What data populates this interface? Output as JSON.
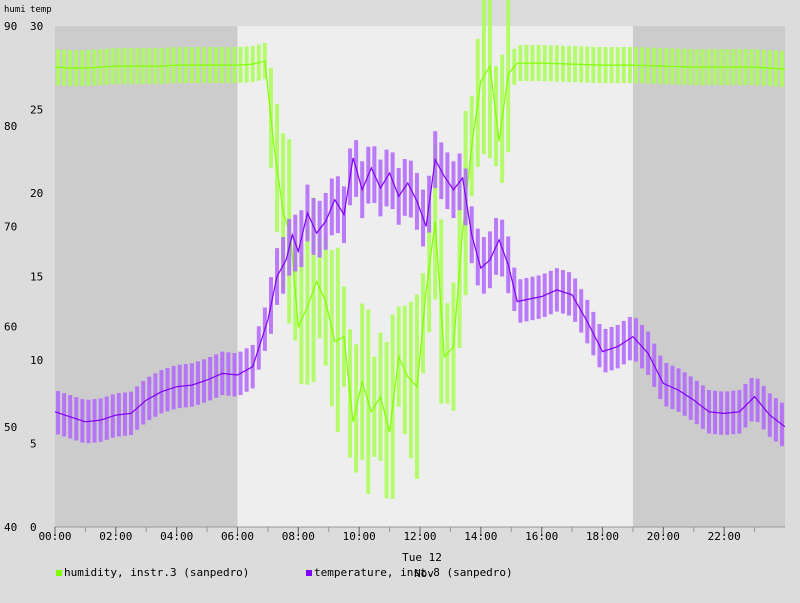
{
  "chart_data": {
    "type": "line",
    "left_axis_label": "humi",
    "right_axis_label": "temp",
    "left_ylim": [
      40,
      90
    ],
    "left_ticks": [
      "40",
      "50",
      "60",
      "70",
      "80",
      "90"
    ],
    "right_ylim": [
      0,
      30
    ],
    "right_ticks": [
      "0",
      "5",
      "10",
      "15",
      "20",
      "25",
      "30"
    ],
    "xlim_hours": [
      0,
      24
    ],
    "x_ticks": [
      "00:00",
      "02:00",
      "04:00",
      "06:00",
      "08:00",
      "10:00",
      "12:00",
      "14:00",
      "16:00",
      "18:00",
      "20:00",
      "22:00"
    ],
    "x_caption": "Tue 12",
    "x_caption_overlap": "Nov",
    "night_shading": [
      [
        0,
        6
      ],
      [
        19,
        24
      ]
    ],
    "grid": true,
    "legend_position": "bottom",
    "series": [
      {
        "name": "humidity, instr.3 (sanpedro)",
        "axis": "left",
        "color": "#80ff00",
        "band_color": "#aaff55",
        "points": [
          [
            0.0,
            85.9
          ],
          [
            0.5,
            85.8
          ],
          [
            1.0,
            85.8
          ],
          [
            1.5,
            85.9
          ],
          [
            2.0,
            86.0
          ],
          [
            2.5,
            86.0
          ],
          [
            3.0,
            86.0
          ],
          [
            3.5,
            86.0
          ],
          [
            4.0,
            86.1
          ],
          [
            4.5,
            86.1
          ],
          [
            5.0,
            86.1
          ],
          [
            5.5,
            86.1
          ],
          [
            6.0,
            86.1
          ],
          [
            6.5,
            86.2
          ],
          [
            6.9,
            86.5
          ],
          [
            7.2,
            78.0
          ],
          [
            7.5,
            71.5
          ],
          [
            7.75,
            69.0
          ],
          [
            8.0,
            60.0
          ],
          [
            8.3,
            62.0
          ],
          [
            8.6,
            64.5
          ],
          [
            8.9,
            62.5
          ],
          [
            9.2,
            58.5
          ],
          [
            9.5,
            59.0
          ],
          [
            9.8,
            50.5
          ],
          [
            10.1,
            54.5
          ],
          [
            10.4,
            51.5
          ],
          [
            10.7,
            53.0
          ],
          [
            11.0,
            49.5
          ],
          [
            11.3,
            57.0
          ],
          [
            11.6,
            55.0
          ],
          [
            11.9,
            54.0
          ],
          [
            12.2,
            63.5
          ],
          [
            12.5,
            70.5
          ],
          [
            12.8,
            57.0
          ],
          [
            13.1,
            58.0
          ],
          [
            13.4,
            69.5
          ],
          [
            13.7,
            78.0
          ],
          [
            14.0,
            84.5
          ],
          [
            14.3,
            86.0
          ],
          [
            14.6,
            78.5
          ],
          [
            14.9,
            85.2
          ],
          [
            15.2,
            86.3
          ],
          [
            16.0,
            86.3
          ],
          [
            17.0,
            86.2
          ],
          [
            18.0,
            86.1
          ],
          [
            19.0,
            86.1
          ],
          [
            20.0,
            86.0
          ],
          [
            21.0,
            85.9
          ],
          [
            22.0,
            85.9
          ],
          [
            23.0,
            85.9
          ],
          [
            24.0,
            85.7
          ]
        ]
      },
      {
        "name": "temperature, inst.8 (sanpedro)",
        "axis": "right",
        "color": "#8000ff",
        "band_color": "#b266ff",
        "points": [
          [
            0.0,
            6.9
          ],
          [
            0.5,
            6.6
          ],
          [
            1.0,
            6.3
          ],
          [
            1.5,
            6.4
          ],
          [
            2.0,
            6.7
          ],
          [
            2.5,
            6.8
          ],
          [
            3.0,
            7.6
          ],
          [
            3.5,
            8.1
          ],
          [
            4.0,
            8.4
          ],
          [
            4.5,
            8.5
          ],
          [
            5.0,
            8.8
          ],
          [
            5.5,
            9.2
          ],
          [
            6.0,
            9.1
          ],
          [
            6.5,
            9.6
          ],
          [
            7.0,
            12.4
          ],
          [
            7.3,
            15.0
          ],
          [
            7.6,
            16.0
          ],
          [
            7.8,
            17.5
          ],
          [
            8.0,
            16.5
          ],
          [
            8.3,
            18.8
          ],
          [
            8.6,
            17.6
          ],
          [
            8.9,
            18.3
          ],
          [
            9.2,
            19.6
          ],
          [
            9.5,
            18.7
          ],
          [
            9.8,
            22.1
          ],
          [
            10.1,
            20.2
          ],
          [
            10.4,
            21.5
          ],
          [
            10.7,
            20.3
          ],
          [
            11.0,
            21.2
          ],
          [
            11.3,
            19.8
          ],
          [
            11.6,
            20.6
          ],
          [
            11.9,
            19.5
          ],
          [
            12.2,
            18.0
          ],
          [
            12.5,
            22.0
          ],
          [
            12.8,
            21.0
          ],
          [
            13.1,
            20.2
          ],
          [
            13.4,
            20.9
          ],
          [
            13.7,
            17.5
          ],
          [
            14.0,
            15.5
          ],
          [
            14.3,
            16.0
          ],
          [
            14.6,
            17.2
          ],
          [
            14.9,
            15.7
          ],
          [
            15.2,
            13.5
          ],
          [
            16.0,
            13.8
          ],
          [
            16.5,
            14.2
          ],
          [
            17.0,
            13.9
          ],
          [
            17.5,
            12.3
          ],
          [
            18.0,
            10.5
          ],
          [
            18.5,
            10.8
          ],
          [
            19.0,
            11.4
          ],
          [
            19.5,
            10.4
          ],
          [
            20.0,
            8.6
          ],
          [
            20.5,
            8.2
          ],
          [
            21.0,
            7.6
          ],
          [
            21.5,
            6.9
          ],
          [
            22.0,
            6.8
          ],
          [
            22.5,
            6.9
          ],
          [
            23.0,
            7.8
          ],
          [
            23.5,
            6.7
          ],
          [
            24.0,
            6.0
          ]
        ]
      }
    ]
  }
}
